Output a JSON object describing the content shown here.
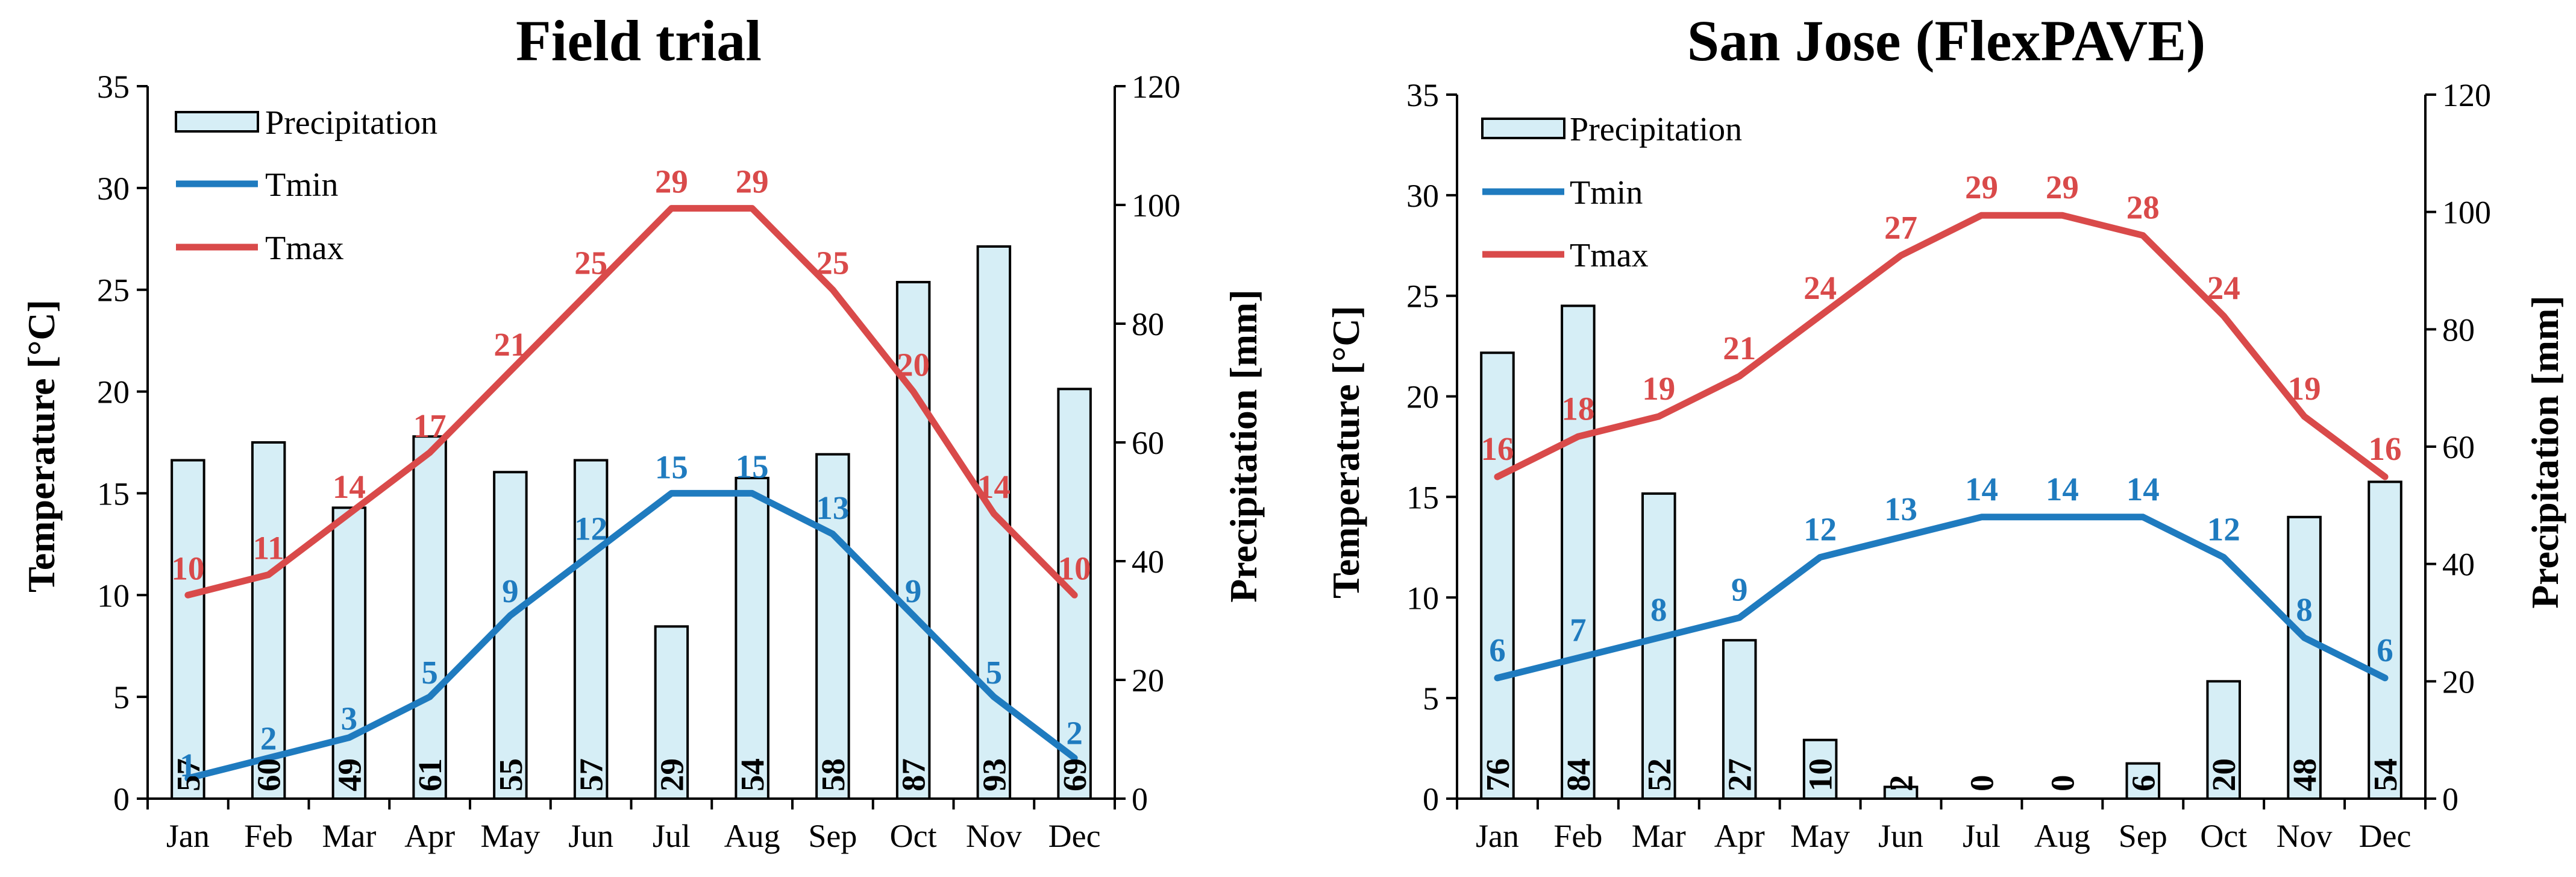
{
  "colors": {
    "tmin": "#1f7bbf",
    "tmax": "#d94a4a",
    "bar_fill": "#d6eef6",
    "bar_stroke": "#000000"
  },
  "chart_data": [
    {
      "type": "bar+line",
      "title": "Field trial",
      "categories": [
        "Jan",
        "Feb",
        "Mar",
        "Apr",
        "May",
        "Jun",
        "Jul",
        "Aug",
        "Sep",
        "Oct",
        "Nov",
        "Dec"
      ],
      "ylabel_left": "Temperature [°C]",
      "ylabel_right": "Precipitation [mm]",
      "ylim_left": [
        0,
        35
      ],
      "ylim_right": [
        0,
        120
      ],
      "yticks_left": [
        "0",
        "5",
        "10",
        "15",
        "20",
        "25",
        "30",
        "35"
      ],
      "yticks_right": [
        "0",
        "20",
        "40",
        "60",
        "80",
        "100",
        "120"
      ],
      "legend": [
        "Precipitation",
        "Tmin",
        "Tmax"
      ],
      "series": [
        {
          "name": "Precipitation",
          "kind": "bar",
          "axis": "right",
          "values": [
            57,
            60,
            49,
            61,
            55,
            57,
            29,
            54,
            58,
            87,
            93,
            69
          ]
        },
        {
          "name": "Tmin",
          "kind": "line",
          "axis": "left",
          "values": [
            1,
            2,
            3,
            5,
            9,
            12,
            15,
            15,
            13,
            9,
            5,
            2
          ]
        },
        {
          "name": "Tmax",
          "kind": "line",
          "axis": "left",
          "values": [
            10,
            11,
            14,
            17,
            21,
            25,
            29,
            29,
            25,
            20,
            14,
            10
          ]
        }
      ]
    },
    {
      "type": "bar+line",
      "title": "San Jose (FlexPAVE)",
      "categories": [
        "Jan",
        "Feb",
        "Mar",
        "Apr",
        "May",
        "Jun",
        "Jul",
        "Aug",
        "Sep",
        "Oct",
        "Nov",
        "Dec"
      ],
      "ylabel_left": "Temperature [°C]",
      "ylabel_right": "Precipitation [mm]",
      "ylim_left": [
        0,
        35
      ],
      "ylim_right": [
        0,
        120
      ],
      "yticks_left": [
        "0",
        "5",
        "10",
        "15",
        "20",
        "25",
        "30",
        "35"
      ],
      "yticks_right": [
        "0",
        "20",
        "40",
        "60",
        "80",
        "100",
        "120"
      ],
      "legend": [
        "Precipitation",
        "Tmin",
        "Tmax"
      ],
      "series": [
        {
          "name": "Precipitation",
          "kind": "bar",
          "axis": "right",
          "values": [
            76,
            84,
            52,
            27,
            10,
            2,
            0,
            0,
            6,
            20,
            48,
            54
          ]
        },
        {
          "name": "Tmin",
          "kind": "line",
          "axis": "left",
          "values": [
            6,
            7,
            8,
            9,
            12,
            13,
            14,
            14,
            14,
            12,
            8,
            6
          ]
        },
        {
          "name": "Tmax",
          "kind": "line",
          "axis": "left",
          "values": [
            16,
            18,
            19,
            21,
            24,
            27,
            29,
            29,
            28,
            24,
            19,
            16
          ]
        }
      ]
    }
  ]
}
